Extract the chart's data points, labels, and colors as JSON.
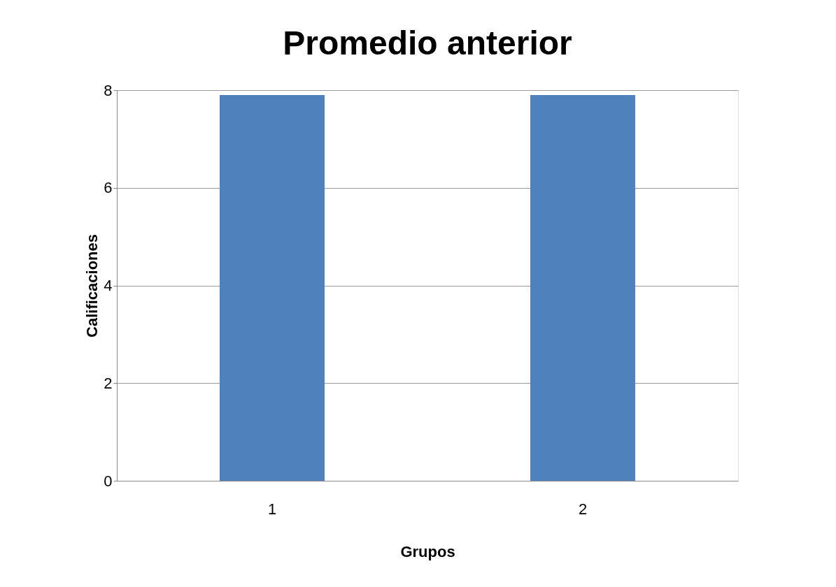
{
  "chart_data": {
    "type": "bar",
    "title": "Promedio anterior",
    "xlabel": "Grupos",
    "ylabel": "Calificaciones",
    "categories": [
      "1",
      "2"
    ],
    "values": [
      7.9,
      7.9
    ],
    "color": "#4f81bd",
    "ylim": [
      0,
      8
    ],
    "yticks": [
      0,
      2,
      4,
      6,
      8
    ],
    "grid": "y"
  }
}
